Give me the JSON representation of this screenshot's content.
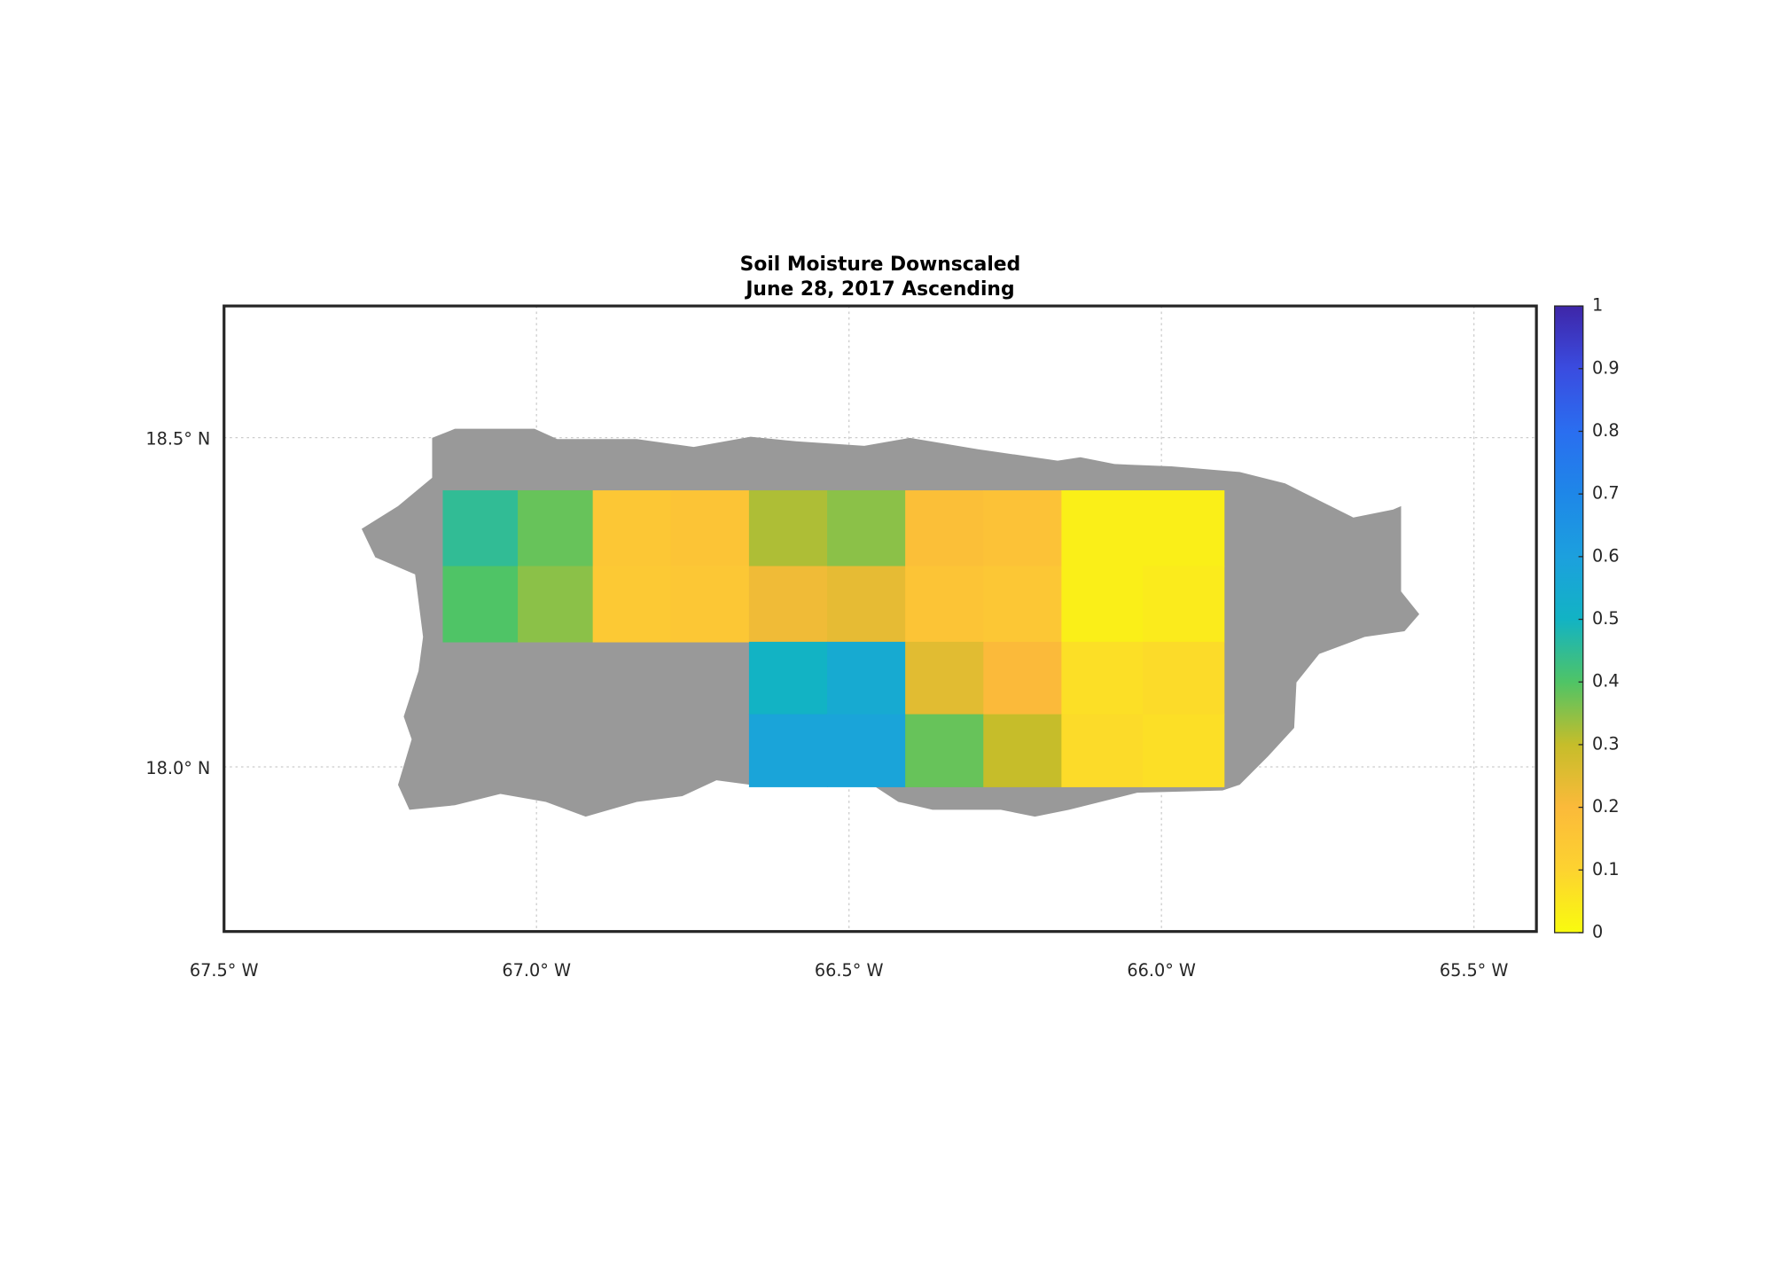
{
  "chart_data": {
    "type": "heatmap-map",
    "title": "Soil Moisture Downscaled",
    "subtitle": "June 28, 2017 Ascending",
    "xlim": [
      -67.5,
      -65.4
    ],
    "ylim": [
      17.75,
      18.7
    ],
    "xticks": [
      {
        "value": -67.5,
        "label": "67.5° W"
      },
      {
        "value": -67.0,
        "label": "67.0° W"
      },
      {
        "value": -66.5,
        "label": "66.5° W"
      },
      {
        "value": -66.0,
        "label": "66.0° W"
      },
      {
        "value": -65.5,
        "label": "65.5° W"
      }
    ],
    "yticks": [
      {
        "value": 18.0,
        "label": "18.0° N"
      },
      {
        "value": 18.5,
        "label": "18.5° N"
      }
    ],
    "grid": true,
    "lon_edges": [
      -67.15,
      -67.03,
      -66.91,
      -66.785,
      -66.66,
      -66.535,
      -66.41,
      -66.285,
      -66.16,
      -66.03,
      -65.9
    ],
    "lat_edges": [
      18.42,
      18.305,
      18.19,
      18.08,
      17.97
    ],
    "values": [
      [
        0.45,
        0.38,
        0.15,
        0.16,
        0.32,
        0.35,
        0.18,
        0.17,
        0.03,
        0.03
      ],
      [
        0.4,
        0.35,
        0.14,
        0.15,
        0.22,
        0.24,
        0.16,
        0.15,
        0.03,
        0.04
      ],
      [
        null,
        null,
        null,
        null,
        0.5,
        0.55,
        0.25,
        0.2,
        0.07,
        0.08
      ],
      [
        null,
        null,
        null,
        null,
        0.58,
        0.58,
        0.38,
        0.3,
        0.08,
        0.07
      ]
    ],
    "clim": [
      0,
      1
    ],
    "cticks": [
      0,
      0.1,
      0.2,
      0.3,
      0.4,
      0.5,
      0.6,
      0.7,
      0.8,
      0.9,
      1
    ],
    "colormap": [
      "#f9fb0e",
      "#fdd330",
      "#fbba3a",
      "#c6bd2a",
      "#4fc466",
      "#12b3c4",
      "#1ca0de",
      "#1e87e8",
      "#2a6ef0",
      "#3a4ce0",
      "#3e26a8"
    ]
  }
}
